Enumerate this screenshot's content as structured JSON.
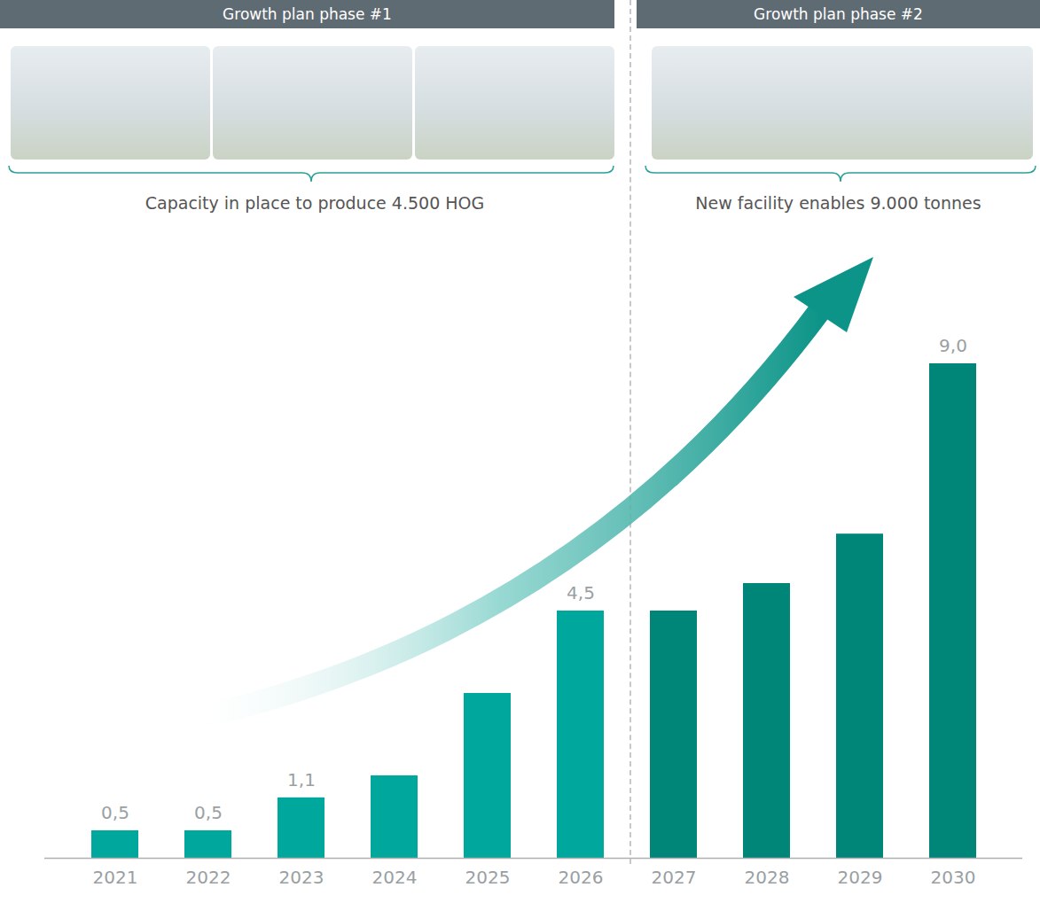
{
  "chart_data": {
    "type": "bar",
    "phases": [
      {
        "title": "Growth plan phase #1",
        "caption": "Capacity in place to produce 4.500 HOG"
      },
      {
        "title": "Growth plan phase #2",
        "caption": "New facility enables 9.000 tonnes"
      }
    ],
    "categories": [
      "2021",
      "2022",
      "2023",
      "2024",
      "2025",
      "2026",
      "2027",
      "2028",
      "2029",
      "2030"
    ],
    "values": [
      0.5,
      0.5,
      1.1,
      1.5,
      3.0,
      4.5,
      4.5,
      5.0,
      5.9,
      9.0
    ],
    "value_labels": [
      "0,5",
      "0,5",
      "1,1",
      null,
      null,
      "4,5",
      null,
      null,
      null,
      "9,0"
    ],
    "data_labels": true,
    "colors": [
      "#00a79d",
      "#00a79d",
      "#00a79d",
      "#00a79d",
      "#00a79d",
      "#00a79d",
      "#008579",
      "#008579",
      "#008579",
      "#008579"
    ],
    "ylim": [
      0,
      9
    ],
    "tick_labels": "x",
    "grid": false
  }
}
